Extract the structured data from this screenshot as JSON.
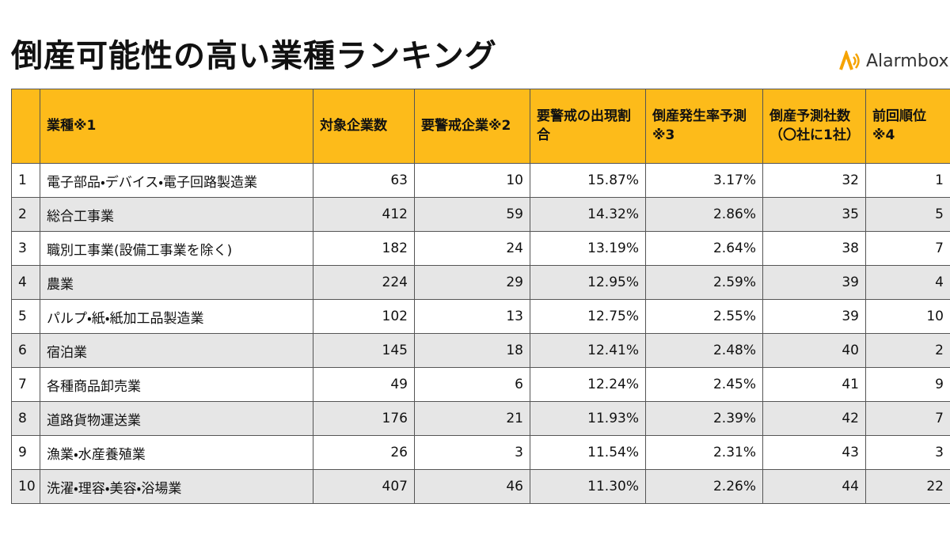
{
  "header": {
    "title": "倒産可能性の高い業種ランキング",
    "logo": "Alarmbox"
  },
  "table": {
    "columns": [
      "",
      "業種※1",
      "対象企業数",
      "要警戒企業※2",
      "要警戒の出現割合",
      "倒産発生率予測※3",
      "倒産予測社数（〇社に1社）",
      "前回順位※4"
    ],
    "rows": [
      [
        "1",
        "電子部品・デバイス・電子回路製造業",
        "63",
        "10",
        "15.87%",
        "3.17%",
        "32",
        "1"
      ],
      [
        "2",
        "総合工事業",
        "412",
        "59",
        "14.32%",
        "2.86%",
        "35",
        "5"
      ],
      [
        "3",
        "職別工事業(設備工事業を除く)",
        "182",
        "24",
        "13.19%",
        "2.64%",
        "38",
        "7"
      ],
      [
        "4",
        "農業",
        "224",
        "29",
        "12.95%",
        "2.59%",
        "39",
        "4"
      ],
      [
        "5",
        "パルプ・紙・紙加工品製造業",
        "102",
        "13",
        "12.75%",
        "2.55%",
        "39",
        "10"
      ],
      [
        "6",
        "宿泊業",
        "145",
        "18",
        "12.41%",
        "2.48%",
        "40",
        "2"
      ],
      [
        "7",
        "各種商品卸売業",
        "49",
        "6",
        "12.24%",
        "2.45%",
        "41",
        "9"
      ],
      [
        "8",
        "道路貨物運送業",
        "176",
        "21",
        "11.93%",
        "2.39%",
        "42",
        "7"
      ],
      [
        "9",
        "漁業・水産養殖業",
        "26",
        "3",
        "11.54%",
        "2.31%",
        "43",
        "3"
      ],
      [
        "10",
        "洗濯・理容・美容・浴場業",
        "407",
        "46",
        "11.30%",
        "2.26%",
        "44",
        "22"
      ]
    ]
  }
}
